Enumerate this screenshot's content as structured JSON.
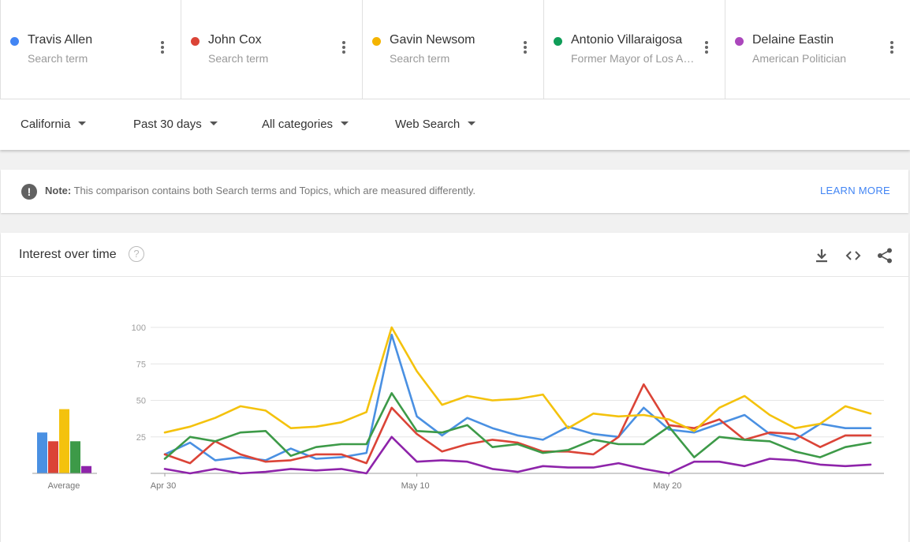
{
  "terms": [
    {
      "name": "Travis Allen",
      "sub": "Search term",
      "color": "#4285f4"
    },
    {
      "name": "John Cox",
      "sub": "Search term",
      "color": "#db4437"
    },
    {
      "name": "Gavin Newsom",
      "sub": "Search term",
      "color": "#f4b400"
    },
    {
      "name": "Antonio Villaraigosa",
      "sub": "Former Mayor of Los Angeles",
      "color": "#0f9d58"
    },
    {
      "name": "Delaine Eastin",
      "sub": "American Politician",
      "color": "#ab47bc"
    }
  ],
  "filters": {
    "region": "California",
    "time": "Past 30 days",
    "category": "All categories",
    "source": "Web Search"
  },
  "note": {
    "label": "Note:",
    "text": " This comparison contains both Search terms and Topics, which are measured differently.",
    "link": "LEARN MORE"
  },
  "card": {
    "title": "Interest over time",
    "help": "?"
  },
  "chart_data": {
    "type": "line",
    "title": "Interest over time",
    "ylim": [
      0,
      100
    ],
    "yticks": [
      25,
      50,
      75,
      100
    ],
    "x_tick_labels": [
      {
        "index": 0,
        "label": "Apr 30"
      },
      {
        "index": 10,
        "label": "May 10"
      },
      {
        "index": 20,
        "label": "May 20"
      }
    ],
    "series": [
      {
        "name": "Travis Allen",
        "color": "#4a90e2",
        "values": [
          13,
          21,
          9,
          11,
          9,
          17,
          10,
          11,
          14,
          95,
          39,
          26,
          38,
          31,
          26,
          23,
          32,
          27,
          25,
          45,
          30,
          28,
          34,
          40,
          27,
          23,
          34,
          31,
          31
        ]
      },
      {
        "name": "John Cox",
        "color": "#db4437",
        "values": [
          13,
          7,
          22,
          13,
          8,
          9,
          13,
          13,
          7,
          45,
          27,
          15,
          20,
          23,
          21,
          15,
          15,
          13,
          25,
          61,
          33,
          31,
          37,
          23,
          28,
          27,
          18,
          26,
          26
        ]
      },
      {
        "name": "Gavin Newsom",
        "color": "#f4c20d",
        "values": [
          28,
          32,
          38,
          46,
          43,
          31,
          32,
          35,
          42,
          100,
          70,
          47,
          53,
          50,
          51,
          54,
          31,
          41,
          39,
          40,
          37,
          29,
          45,
          53,
          40,
          31,
          34,
          46,
          41
        ]
      },
      {
        "name": "Antonio Villaraigosa",
        "color": "#3d9a48",
        "values": [
          10,
          25,
          22,
          28,
          29,
          12,
          18,
          20,
          20,
          55,
          29,
          28,
          33,
          18,
          20,
          14,
          16,
          23,
          20,
          20,
          32,
          11,
          25,
          23,
          22,
          15,
          11,
          18,
          21
        ]
      },
      {
        "name": "Delaine Eastin",
        "color": "#8e24aa",
        "values": [
          3,
          0,
          3,
          0,
          1,
          3,
          2,
          3,
          0,
          25,
          8,
          9,
          8,
          3,
          1,
          5,
          4,
          4,
          7,
          3,
          0,
          8,
          8,
          5,
          10,
          9,
          6,
          5,
          6
        ]
      }
    ],
    "averages": [
      {
        "name": "Travis Allen",
        "value": 28,
        "color": "#4a90e2"
      },
      {
        "name": "John Cox",
        "value": 22,
        "color": "#db4437"
      },
      {
        "name": "Gavin Newsom",
        "value": 44,
        "color": "#f4c20d"
      },
      {
        "name": "Antonio Villaraigosa",
        "value": 22,
        "color": "#3d9a48"
      },
      {
        "name": "Delaine Eastin",
        "value": 5,
        "color": "#8e24aa"
      }
    ],
    "average_label": "Average"
  }
}
